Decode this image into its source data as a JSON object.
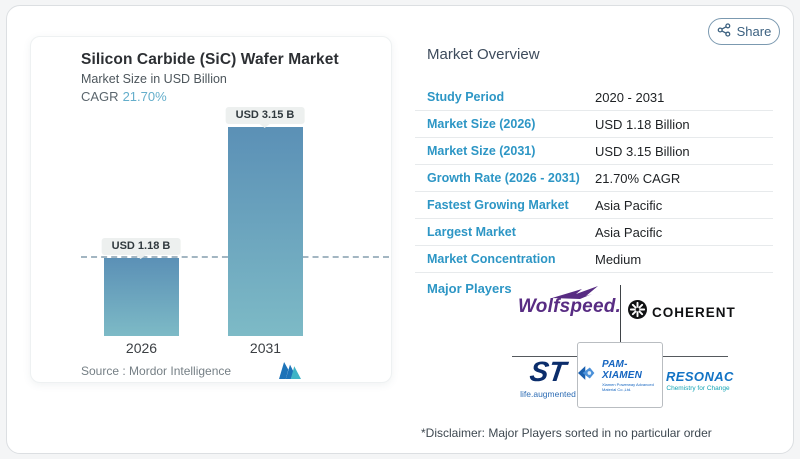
{
  "chart_card": {
    "title": "Silicon Carbide (SiC) Wafer Market",
    "subtitle": "Market Size in USD Billion",
    "cagr_label": "CAGR",
    "cagr_value": "21.70%",
    "source_label": "Source :  Mordor Intelligence",
    "source_logo": "mordor-intelligence-logo"
  },
  "chart_data": {
    "type": "bar",
    "categories": [
      "2026",
      "2031"
    ],
    "values": [
      1.18,
      3.15
    ],
    "value_labels": [
      "USD 1.18 B",
      "USD 3.15 B"
    ],
    "title": "Silicon Carbide (SiC) Wafer Market",
    "ylabel": "Market Size in USD Billion",
    "cagr_pct": 21.7,
    "dashed_reference_value": 1.18,
    "grid": "off",
    "legend": "none",
    "bar_gradient": [
      "#5b90b6",
      "#7dbac6"
    ]
  },
  "share": {
    "label": "Share",
    "icon": "share-nodes-icon"
  },
  "overview": {
    "heading": "Market Overview",
    "rows": [
      {
        "label": "Study Period",
        "value": "2020 - 2031"
      },
      {
        "label": "Market Size (2026)",
        "value": "USD 1.18 Billion"
      },
      {
        "label": "Market Size (2031)",
        "value": "USD 3.15 Billion"
      },
      {
        "label": "Growth Rate (2026 - 2031)",
        "value": "21.70% CAGR"
      },
      {
        "label": "Fastest Growing Market",
        "value": "Asia Pacific"
      },
      {
        "label": "Largest Market",
        "value": "Asia Pacific"
      },
      {
        "label": "Market Concentration",
        "value": "Medium"
      }
    ],
    "major_players_label": "Major Players",
    "players": {
      "wolfspeed": {
        "name": "Wolfspeed."
      },
      "coherent": {
        "name": "COHERENT"
      },
      "st": {
        "mark": "ST",
        "tagline": "life.augmented"
      },
      "pam_xiamen": {
        "name": "PAM-XIAMEN",
        "sub": "Xiamen Powerway Advanced Material Co.,Ltd."
      },
      "resonac": {
        "name": "RESONAC",
        "tagline": "Chemistry for Change"
      }
    },
    "disclaimer": "*Disclaimer: Major Players sorted in no particular order"
  },
  "colors": {
    "accent_blue": "#2d96c5",
    "cagr_blue": "#64aecb",
    "bar_top": "#5b90b6",
    "bar_bottom": "#7dbac6",
    "share_blue": "#3c6180",
    "wolfspeed_purple": "#582c83",
    "st_navy": "#0b2d6b",
    "pam_blue": "#1565c0",
    "resonac_blue": "#1273c4",
    "resonac_teal": "#12a3b4",
    "mordor_blue": "#1e73b8",
    "mordor_teal": "#3fb3c6"
  }
}
